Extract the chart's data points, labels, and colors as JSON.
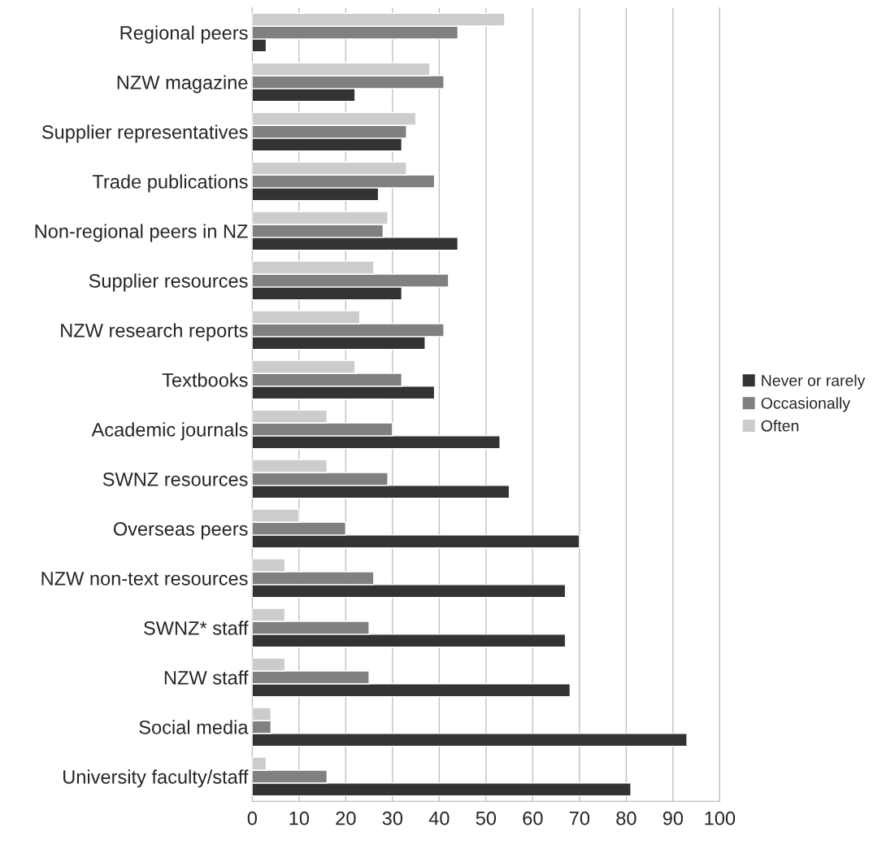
{
  "chart_data": {
    "type": "bar",
    "orientation": "horizontal",
    "categories": [
      "Regional peers",
      "NZW magazine",
      "Supplier representatives",
      "Trade publications",
      "Non-regional peers in NZ",
      "Supplier resources",
      "NZW research reports",
      "Textbooks",
      "Academic journals",
      "SWNZ resources",
      "Overseas peers",
      "NZW non-text resources",
      "SWNZ* staff",
      "NZW staff",
      "Social media",
      "University faculty/staff"
    ],
    "series": [
      {
        "name": "Never or rarely",
        "color": "#333333",
        "values": [
          3,
          22,
          32,
          27,
          44,
          32,
          37,
          39,
          53,
          55,
          70,
          67,
          67,
          68,
          93,
          81
        ]
      },
      {
        "name": "Occasionally",
        "color": "#808080",
        "values": [
          44,
          41,
          33,
          39,
          28,
          42,
          41,
          32,
          30,
          29,
          20,
          26,
          25,
          25,
          4,
          16
        ]
      },
      {
        "name": "Often",
        "color": "#cccccc",
        "values": [
          54,
          38,
          35,
          33,
          29,
          26,
          23,
          22,
          16,
          16,
          10,
          7,
          7,
          7,
          4,
          3
        ]
      }
    ],
    "xlim": [
      0,
      100
    ],
    "xticks": [
      0,
      10,
      20,
      30,
      40,
      50,
      60,
      70,
      80,
      90,
      100
    ],
    "grid": "x",
    "legend": "right"
  }
}
